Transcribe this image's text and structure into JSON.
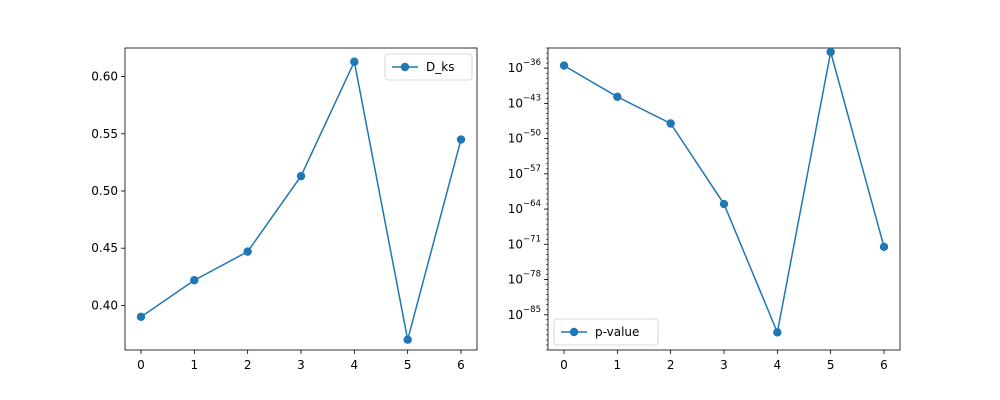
{
  "colors": {
    "series": "#1f77b4",
    "axes": "#000000",
    "background": "#ffffff",
    "legend_border": "#cccccc"
  },
  "chart_data": [
    {
      "type": "line",
      "title": "",
      "xlabel": "",
      "ylabel": "",
      "marker": "circle",
      "grid": false,
      "legend_position": "upper right",
      "x": [
        0,
        1,
        2,
        3,
        4,
        5,
        6
      ],
      "series": [
        {
          "name": "D_ks",
          "values": [
            0.39,
            0.422,
            0.447,
            0.513,
            0.613,
            0.37,
            0.545
          ]
        }
      ],
      "xlim": [
        -0.3,
        6.3
      ],
      "ylim": [
        0.361,
        0.625
      ],
      "xticks": [
        0,
        1,
        2,
        3,
        4,
        5,
        6
      ],
      "yticks": [
        0.4,
        0.45,
        0.5,
        0.55,
        0.6
      ],
      "ytick_labels": [
        "0.40",
        "0.45",
        "0.50",
        "0.55",
        "0.60"
      ],
      "yscale": "linear"
    },
    {
      "type": "line",
      "title": "",
      "xlabel": "",
      "ylabel": "",
      "marker": "circle",
      "grid": false,
      "legend_position": "lower left",
      "x": [
        0,
        1,
        2,
        3,
        4,
        5,
        6
      ],
      "series": [
        {
          "name": "p-value",
          "values": [
            3.2e-36,
            2e-42,
            1e-47,
            1e-63,
            3.2e-89,
            1.6e-33,
            3.2e-72
          ]
        }
      ],
      "xlim": [
        -0.3,
        6.3
      ],
      "ylim_exponent": [
        -92,
        -32
      ],
      "yscale": "log",
      "xticks": [
        0,
        1,
        2,
        3,
        4,
        5,
        6
      ],
      "ytick_exponents": [
        -36,
        -43,
        -50,
        -57,
        -64,
        -71,
        -78,
        -85
      ]
    }
  ]
}
